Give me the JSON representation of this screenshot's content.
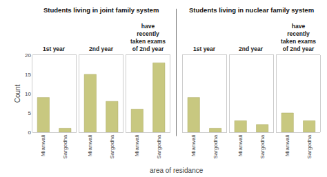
{
  "chart_data": [
    {
      "type": "bar",
      "title": "1st year",
      "subtitle": "Students living in joint family system",
      "xlabel": "area of residance",
      "ylabel": "Count",
      "categories": [
        "Mianwali",
        "Sargodha"
      ],
      "values": [
        9,
        1
      ],
      "color": "#c8c880",
      "ylim": [
        0,
        20
      ],
      "yticks": [
        0,
        5,
        10,
        15,
        20
      ],
      "grid": false
    },
    {
      "type": "bar",
      "title": "2nd year",
      "categories": [
        "Mianwali",
        "Sargodha"
      ],
      "values": [
        15,
        8
      ],
      "color": "#c8c880",
      "ylim": [
        0,
        20
      ],
      "yticks": [
        0,
        5,
        10,
        15,
        20
      ],
      "grid": false,
      "tick_labels": "x"
    },
    {
      "type": "bar",
      "title": "have\nrecently\ntaken exams\nof 2nd year",
      "categories": [
        "Mianwali",
        "Sargodha"
      ],
      "values": [
        6,
        18
      ],
      "color": "#c8c880",
      "ylim": [
        0,
        20
      ],
      "yticks": [
        0,
        5,
        10,
        15,
        20
      ],
      "grid": false,
      "tick_labels": "x"
    },
    {
      "type": "bar",
      "title": "1st year",
      "subtitle": "Students living in nuclear family system",
      "categories": [
        "Mianwali",
        "Sargodha"
      ],
      "values": [
        9,
        1
      ],
      "color": "#c8c880",
      "ylim": [
        0,
        20
      ],
      "yticks": [
        0,
        5,
        10,
        15,
        20
      ],
      "grid": false,
      "tick_labels": "x"
    },
    {
      "type": "bar",
      "title": "2nd year",
      "categories": [
        "Mianwali",
        "Sargodha"
      ],
      "values": [
        3,
        2
      ],
      "color": "#c8c880",
      "ylim": [
        0,
        20
      ],
      "yticks": [
        0,
        5,
        10,
        15,
        20
      ],
      "grid": false,
      "tick_labels": "x"
    },
    {
      "type": "bar",
      "title": "have\nrecently\ntaken exams\nof 2nd year",
      "categories": [
        "Mianwali",
        "Sargodha"
      ],
      "values": [
        5,
        3
      ],
      "color": "#c8c880",
      "ylim": [
        0,
        20
      ],
      "yticks": [
        0,
        5,
        10,
        15,
        20
      ],
      "grid": false,
      "tick_labels": "x"
    }
  ]
}
